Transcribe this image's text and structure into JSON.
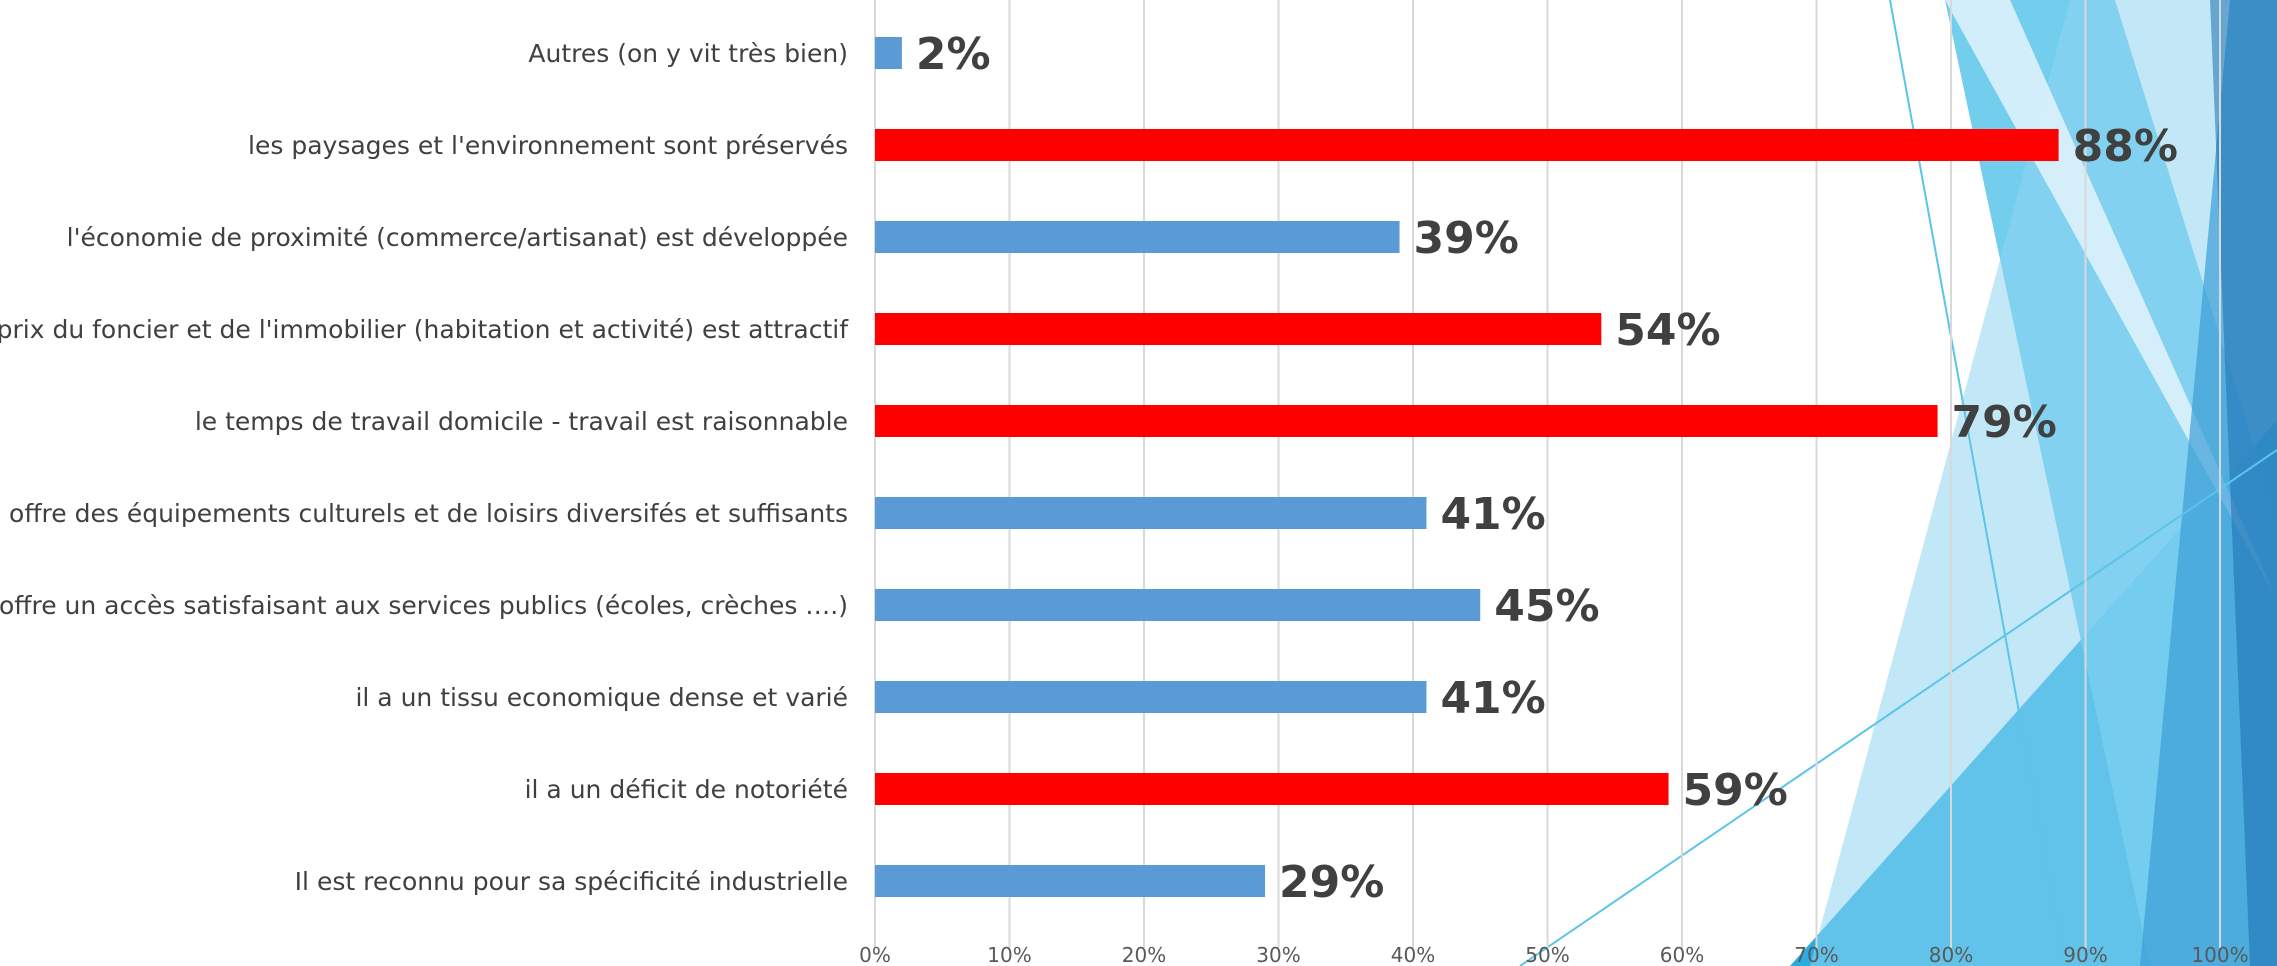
{
  "chart_data": {
    "type": "bar",
    "orientation": "horizontal",
    "categories": [
      "Autres (on y vit très bien)",
      "les paysages et l'environnement sont préservés",
      "l'économie de proximité  (commerce/artisanat) est développée",
      "le prix du foncier et de l'immobilier (habitation et activité) est attractif",
      "le temps de travail domicile - travail est raisonnable",
      "Il offre des équipements culturels et de loisirs diversifés et suffisants",
      "il offre un accès satisfaisant aux services publics (écoles, crèches ….)",
      "il a un tissu economique dense et varié",
      "il a un déficit de notoriété",
      "Il est reconnu pour sa spécificité industrielle"
    ],
    "values": [
      2,
      88,
      39,
      54,
      79,
      41,
      45,
      41,
      59,
      29
    ],
    "value_labels": [
      "2%",
      "88%",
      "39%",
      "54%",
      "79%",
      "41%",
      "45%",
      "41%",
      "59%",
      "29%"
    ],
    "bar_colors": [
      "#5b9bd5",
      "#ff0000",
      "#5b9bd5",
      "#ff0000",
      "#ff0000",
      "#5b9bd5",
      "#5b9bd5",
      "#5b9bd5",
      "#ff0000",
      "#5b9bd5"
    ],
    "x_ticks": [
      "0%",
      "10%",
      "20%",
      "30%",
      "40%",
      "50%",
      "60%",
      "70%",
      "80%",
      "90%",
      "100%"
    ],
    "xlim": [
      0,
      100
    ],
    "grid": true,
    "title": "",
    "xlabel": "",
    "ylabel": ""
  },
  "colors": {
    "highlight_bar": "#ff0000",
    "default_bar": "#5b9bd5",
    "label_text": "#404040",
    "gridline": "#d9d9d9"
  }
}
